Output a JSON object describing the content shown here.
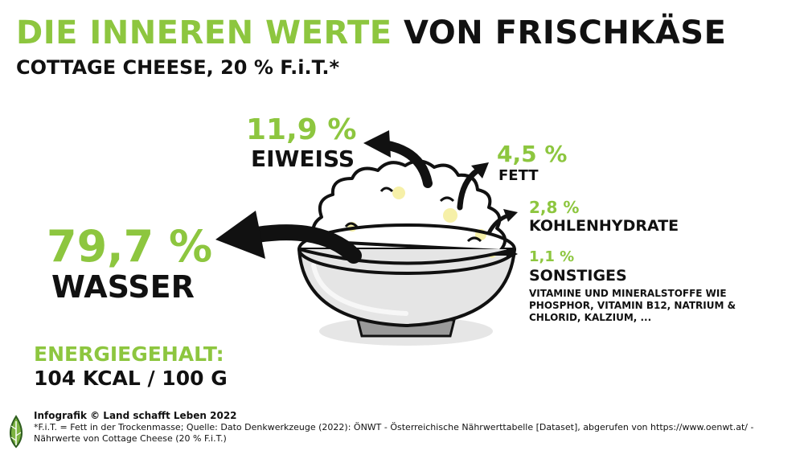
{
  "title": {
    "part1": "DIE INNEREN WERTE",
    "part2": "VON FRISCHKÄSE"
  },
  "subtitle": "COTTAGE CHEESE, 20 % F.i.T.*",
  "nutrients": {
    "water": {
      "value": "79,7 %",
      "label": "WASSER"
    },
    "protein": {
      "value": "11,9 %",
      "label": "EIWEISS"
    },
    "fat": {
      "value": "4,5 %",
      "label": "FETT"
    },
    "carbs": {
      "value": "2,8 %",
      "label": "KOHLENHYDRATE"
    },
    "other": {
      "value": "1,1 %",
      "label": "SONSTIGES",
      "note_lines": [
        "VITAMINE UND MINERALSTOFFE WIE",
        "PHOSPHOR, VITAMIN B12, NATRIUM &",
        "CHLORID, KALZIUM, ..."
      ]
    }
  },
  "energy": {
    "label": "ENERGIEGEHALT:",
    "value": "104 KCAL / 100 G"
  },
  "footer": {
    "credit": "Infografik © Land schafft Leben 2022",
    "source_line1": "*F.i.T. = Fett in der Trockenmasse; Quelle: Dato Denkwerkzeuge (2022): ÖNWT - Österreichische Nährwerttabelle [Dataset], abgerufen von https://www.oenwt.at/ -",
    "source_line2": "Nährwerte von Cottage Cheese (20 % F.i.T.)"
  },
  "colors": {
    "accent": "#8dc63f",
    "text": "#111111",
    "bowl": "#d9d9d9",
    "cheese_highlight": "#f6f0a8"
  },
  "icons": {
    "bowl": "cottage-cheese-bowl-illustration",
    "logo": "leaf-logo-icon"
  }
}
